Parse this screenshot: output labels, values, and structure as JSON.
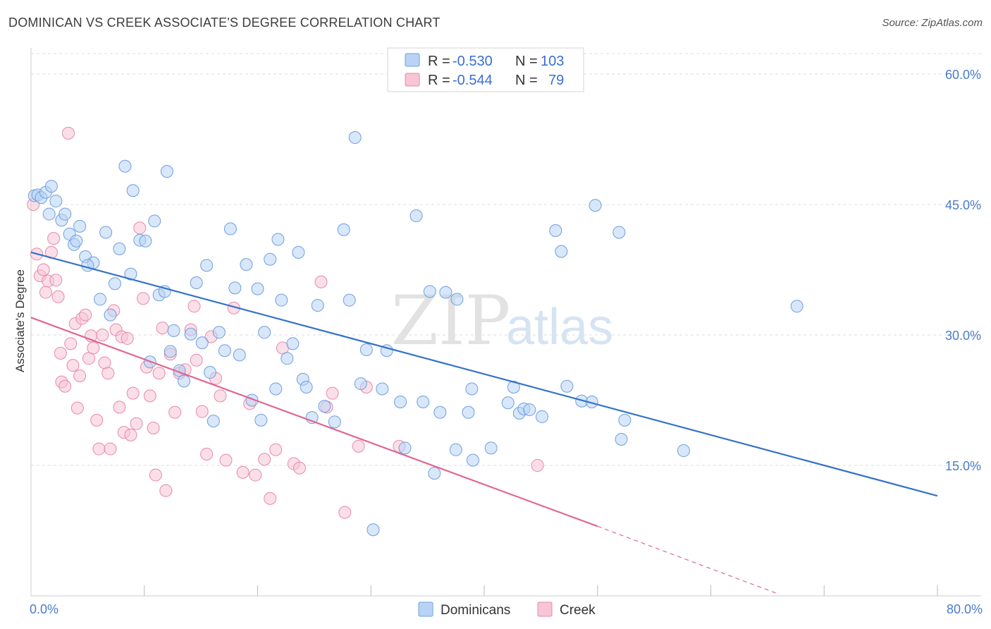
{
  "title": "DOMINICAN VS CREEK ASSOCIATE'S DEGREE CORRELATION CHART",
  "source": "Source: ZipAtlas.com",
  "watermark": {
    "zip": "ZIP",
    "atlas": "atlas"
  },
  "colors": {
    "blue_fill": "#b8d3f5",
    "blue_stroke": "#6f9fdc",
    "blue_line": "#3373c9",
    "pink_fill": "#f8c5d5",
    "pink_stroke": "#e68aa7",
    "pink_line": "#e06792",
    "grid": "#dddddd",
    "tick_label": "#4a7cc9"
  },
  "legend": {
    "rows": [
      {
        "r_label": "R =",
        "r_value": "-0.530",
        "n_label": "N =",
        "n_value": "103"
      },
      {
        "r_label": "R =",
        "r_value": "-0.544",
        "n_label": "N =",
        "n_value": "79"
      }
    ]
  },
  "chart_data": {
    "type": "scatter",
    "title": "DOMINICAN VS CREEK ASSOCIATE'S DEGREE CORRELATION CHART",
    "xlabel": "",
    "ylabel": "Associate's Degree",
    "xlim": [
      0,
      80
    ],
    "ylim": [
      0,
      63
    ],
    "x_tick_labels": [
      "0.0%",
      "80.0%"
    ],
    "y_ticks": [
      15,
      30,
      45,
      60
    ],
    "y_tick_labels": [
      "15.0%",
      "30.0%",
      "45.0%",
      "60.0%"
    ],
    "grid": true,
    "legend_position": "top-center",
    "series": [
      {
        "name": "Dominicans",
        "r": -0.53,
        "n": 103,
        "trend": {
          "x": [
            0,
            80
          ],
          "y": [
            39.5,
            11.5
          ]
        },
        "points": [
          [
            0.3,
            46.0
          ],
          [
            0.6,
            46.1
          ],
          [
            0.9,
            45.8
          ],
          [
            1.3,
            46.4
          ],
          [
            1.8,
            47.1
          ],
          [
            2.2,
            45.4
          ],
          [
            1.6,
            43.9
          ],
          [
            2.7,
            43.2
          ],
          [
            3.0,
            43.9
          ],
          [
            4.3,
            42.5
          ],
          [
            3.4,
            41.6
          ],
          [
            3.8,
            40.4
          ],
          [
            4.0,
            40.8
          ],
          [
            4.8,
            39.0
          ],
          [
            5.5,
            38.3
          ],
          [
            5.0,
            38.0
          ],
          [
            6.1,
            34.1
          ],
          [
            6.6,
            41.8
          ],
          [
            7.0,
            32.3
          ],
          [
            7.4,
            35.9
          ],
          [
            7.8,
            39.9
          ],
          [
            8.3,
            49.4
          ],
          [
            8.8,
            37.0
          ],
          [
            9.0,
            46.6
          ],
          [
            9.6,
            40.9
          ],
          [
            10.1,
            40.8
          ],
          [
            10.5,
            26.9
          ],
          [
            10.9,
            43.1
          ],
          [
            11.3,
            34.6
          ],
          [
            11.8,
            35.0
          ],
          [
            12.0,
            48.8
          ],
          [
            12.3,
            28.1
          ],
          [
            12.6,
            30.5
          ],
          [
            13.1,
            25.9
          ],
          [
            13.5,
            24.7
          ],
          [
            14.1,
            30.1
          ],
          [
            14.6,
            36.0
          ],
          [
            15.1,
            29.1
          ],
          [
            15.5,
            38.0
          ],
          [
            15.8,
            25.7
          ],
          [
            16.1,
            20.1
          ],
          [
            16.6,
            30.3
          ],
          [
            17.1,
            28.2
          ],
          [
            17.6,
            42.2
          ],
          [
            18.0,
            35.4
          ],
          [
            18.4,
            27.7
          ],
          [
            19.0,
            38.1
          ],
          [
            19.5,
            22.5
          ],
          [
            20.0,
            35.3
          ],
          [
            20.3,
            20.2
          ],
          [
            20.6,
            30.3
          ],
          [
            21.1,
            38.7
          ],
          [
            21.6,
            23.8
          ],
          [
            21.8,
            41.0
          ],
          [
            22.1,
            34.0
          ],
          [
            22.6,
            27.3
          ],
          [
            23.1,
            29.0
          ],
          [
            23.6,
            39.5
          ],
          [
            24.0,
            24.9
          ],
          [
            24.3,
            24.0
          ],
          [
            24.8,
            20.5
          ],
          [
            25.3,
            33.4
          ],
          [
            25.9,
            21.8
          ],
          [
            26.8,
            20.0
          ],
          [
            27.6,
            42.1
          ],
          [
            28.1,
            34.0
          ],
          [
            28.6,
            52.7
          ],
          [
            29.1,
            24.4
          ],
          [
            29.6,
            28.3
          ],
          [
            30.2,
            7.6
          ],
          [
            31.0,
            23.8
          ],
          [
            31.4,
            28.2
          ],
          [
            32.6,
            22.3
          ],
          [
            33.0,
            17.0
          ],
          [
            34.0,
            43.7
          ],
          [
            34.6,
            22.3
          ],
          [
            35.2,
            35.0
          ],
          [
            35.6,
            14.1
          ],
          [
            36.1,
            21.1
          ],
          [
            36.6,
            34.9
          ],
          [
            37.5,
            16.8
          ],
          [
            37.6,
            34.1
          ],
          [
            38.6,
            21.1
          ],
          [
            38.9,
            23.8
          ],
          [
            39.0,
            15.6
          ],
          [
            40.6,
            17.0
          ],
          [
            42.1,
            22.2
          ],
          [
            42.6,
            24.0
          ],
          [
            43.1,
            21.0
          ],
          [
            43.5,
            21.5
          ],
          [
            44.0,
            21.4
          ],
          [
            45.1,
            20.6
          ],
          [
            46.3,
            42.0
          ],
          [
            46.8,
            39.6
          ],
          [
            47.3,
            24.1
          ],
          [
            48.6,
            22.4
          ],
          [
            49.5,
            22.3
          ],
          [
            49.8,
            44.9
          ],
          [
            51.9,
            41.8
          ],
          [
            52.1,
            18.0
          ],
          [
            52.4,
            20.2
          ],
          [
            57.6,
            16.7
          ],
          [
            67.6,
            33.3
          ]
        ]
      },
      {
        "name": "Creek",
        "r": -0.544,
        "n": 79,
        "trend": {
          "x": [
            0,
            50
          ],
          "y": [
            32.0,
            8.0
          ]
        },
        "trend_dashed": {
          "x": [
            50,
            66
          ],
          "y": [
            8.0,
            0.2
          ]
        },
        "points": [
          [
            0.2,
            45.0
          ],
          [
            0.5,
            39.3
          ],
          [
            0.8,
            36.8
          ],
          [
            1.1,
            37.5
          ],
          [
            1.3,
            34.9
          ],
          [
            1.5,
            36.2
          ],
          [
            1.8,
            39.5
          ],
          [
            2.0,
            41.1
          ],
          [
            2.2,
            36.3
          ],
          [
            2.4,
            34.4
          ],
          [
            2.6,
            27.9
          ],
          [
            2.7,
            24.6
          ],
          [
            3.0,
            24.1
          ],
          [
            3.3,
            53.2
          ],
          [
            3.5,
            29.0
          ],
          [
            3.7,
            26.5
          ],
          [
            3.9,
            31.3
          ],
          [
            4.1,
            21.6
          ],
          [
            4.3,
            25.3
          ],
          [
            4.5,
            31.9
          ],
          [
            4.8,
            32.3
          ],
          [
            5.1,
            27.3
          ],
          [
            5.3,
            29.9
          ],
          [
            5.5,
            28.5
          ],
          [
            5.8,
            20.2
          ],
          [
            6.0,
            16.9
          ],
          [
            6.3,
            30.0
          ],
          [
            6.5,
            26.8
          ],
          [
            6.8,
            25.6
          ],
          [
            7.0,
            16.9
          ],
          [
            7.3,
            32.8
          ],
          [
            7.5,
            30.6
          ],
          [
            7.8,
            21.7
          ],
          [
            8.0,
            29.8
          ],
          [
            8.2,
            18.8
          ],
          [
            8.5,
            29.6
          ],
          [
            8.8,
            18.5
          ],
          [
            9.0,
            23.3
          ],
          [
            9.3,
            19.8
          ],
          [
            9.6,
            42.3
          ],
          [
            9.9,
            34.2
          ],
          [
            10.2,
            26.3
          ],
          [
            10.5,
            23.0
          ],
          [
            10.8,
            19.3
          ],
          [
            11.0,
            13.9
          ],
          [
            11.3,
            25.6
          ],
          [
            11.6,
            30.8
          ],
          [
            11.9,
            12.1
          ],
          [
            12.3,
            27.8
          ],
          [
            12.7,
            21.1
          ],
          [
            13.1,
            25.6
          ],
          [
            13.6,
            26.0
          ],
          [
            14.1,
            30.6
          ],
          [
            14.4,
            33.3
          ],
          [
            14.6,
            27.1
          ],
          [
            15.1,
            21.2
          ],
          [
            15.5,
            16.3
          ],
          [
            15.9,
            29.8
          ],
          [
            16.3,
            25.0
          ],
          [
            16.7,
            23.0
          ],
          [
            17.2,
            15.6
          ],
          [
            17.9,
            33.1
          ],
          [
            18.7,
            14.2
          ],
          [
            19.3,
            22.1
          ],
          [
            19.8,
            13.9
          ],
          [
            20.6,
            15.7
          ],
          [
            21.1,
            11.2
          ],
          [
            21.6,
            16.8
          ],
          [
            22.2,
            28.5
          ],
          [
            23.2,
            15.2
          ],
          [
            23.7,
            14.7
          ],
          [
            25.6,
            36.1
          ],
          [
            26.1,
            21.7
          ],
          [
            26.6,
            23.3
          ],
          [
            27.7,
            9.6
          ],
          [
            28.9,
            17.2
          ],
          [
            29.6,
            24.0
          ],
          [
            32.5,
            17.2
          ],
          [
            44.7,
            15.0
          ]
        ]
      }
    ]
  }
}
